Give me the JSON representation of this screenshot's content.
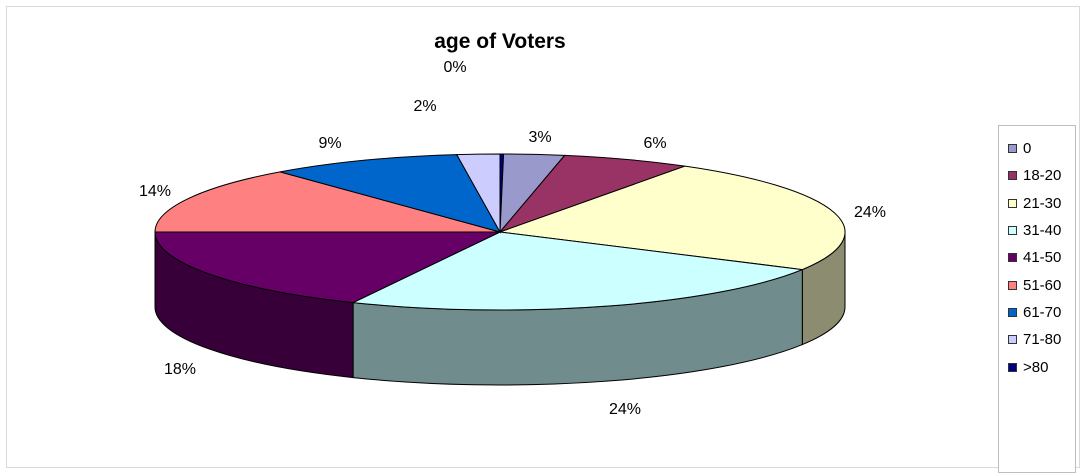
{
  "chart_data": {
    "type": "pie",
    "title": "age of Voters",
    "categories": [
      "0",
      "18-20",
      "21-30",
      "31-40",
      "41-50",
      "51-60",
      "61-70",
      "71-80",
      ">80"
    ],
    "values": [
      3,
      6,
      24,
      24,
      18,
      14,
      9,
      2,
      0
    ],
    "labels": [
      "3%",
      "6%",
      "24%",
      "24%",
      "18%",
      "14%",
      "9%",
      "2%",
      "0%"
    ],
    "colors": [
      "#9999cc",
      "#993366",
      "#ffffcc",
      "#ccffff",
      "#660066",
      "#ff8080",
      "#0066cc",
      "#ccccff",
      "#000080"
    ],
    "legend_position": "right",
    "style": "3d"
  }
}
